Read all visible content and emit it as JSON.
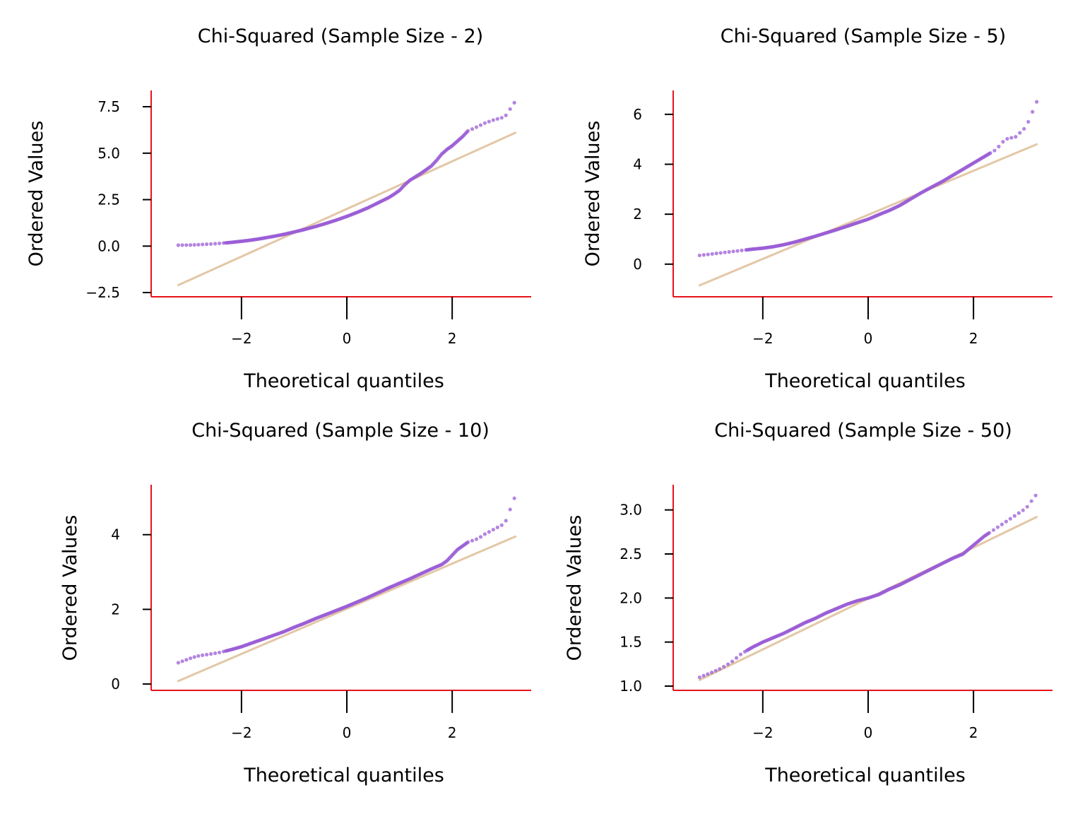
{
  "figure": {
    "background": "#ffffff",
    "spine_color": "#e8131b",
    "point_color": "#9a5cd6",
    "line_color": "#e3c7a6"
  },
  "chart_data": [
    {
      "type": "scatter",
      "title": "Chi-Squared (Sample Size - 2)",
      "xlabel": "Theoretical quantiles",
      "ylabel": "Ordered Values",
      "xlim": [
        -3.5,
        3.5
      ],
      "ylim": [
        -2.65,
        8.3
      ],
      "xticks": [
        -2,
        0,
        2
      ],
      "xtick_labels": [
        "−2",
        "0",
        "2"
      ],
      "yticks": [
        -2.5,
        0.0,
        2.5,
        5.0,
        7.5
      ],
      "ytick_labels": [
        "−2.5",
        "0.0",
        "2.5",
        "5.0",
        "7.5"
      ],
      "grid": false,
      "fit_line": {
        "x": [
          -3.2,
          3.2
        ],
        "y": [
          -2.1,
          6.1
        ]
      },
      "points": {
        "x": [
          -3.2,
          -2.95,
          -2.8,
          -2.6,
          -2.4,
          -2.2,
          -2.0,
          -1.8,
          -1.6,
          -1.4,
          -1.2,
          -1.0,
          -0.8,
          -0.6,
          -0.4,
          -0.2,
          0.0,
          0.2,
          0.4,
          0.6,
          0.8,
          0.9,
          1.0,
          1.1,
          1.2,
          1.4,
          1.6,
          1.7,
          1.8,
          1.9,
          2.0,
          2.1,
          2.2,
          2.3,
          2.5,
          2.6,
          2.8,
          3.0,
          3.2
        ],
        "y": [
          0.05,
          0.06,
          0.08,
          0.11,
          0.15,
          0.2,
          0.26,
          0.33,
          0.42,
          0.52,
          0.63,
          0.76,
          0.9,
          1.05,
          1.22,
          1.4,
          1.6,
          1.82,
          2.06,
          2.34,
          2.62,
          2.8,
          3.0,
          3.3,
          3.55,
          3.9,
          4.3,
          4.6,
          4.95,
          5.2,
          5.4,
          5.65,
          5.9,
          6.2,
          6.45,
          6.6,
          6.8,
          6.95,
          7.8
        ]
      }
    },
    {
      "type": "scatter",
      "title": "Chi-Squared (Sample Size - 5)",
      "xlabel": "Theoretical quantiles",
      "ylabel": "Ordered Values",
      "xlim": [
        -3.5,
        3.5
      ],
      "ylim": [
        -1.25,
        6.9
      ],
      "xticks": [
        -2,
        0,
        2
      ],
      "xtick_labels": [
        "−2",
        "0",
        "2"
      ],
      "yticks": [
        0,
        2,
        4,
        6
      ],
      "ytick_labels": [
        "0",
        "2",
        "4",
        "6"
      ],
      "grid": false,
      "fit_line": {
        "x": [
          -3.2,
          3.2
        ],
        "y": [
          -0.85,
          4.8
        ]
      },
      "points": {
        "x": [
          -3.2,
          -3.0,
          -2.8,
          -2.6,
          -2.4,
          -2.2,
          -2.0,
          -1.8,
          -1.6,
          -1.4,
          -1.2,
          -1.0,
          -0.8,
          -0.6,
          -0.4,
          -0.2,
          0.0,
          0.2,
          0.4,
          0.6,
          0.8,
          1.0,
          1.2,
          1.4,
          1.6,
          1.8,
          2.0,
          2.2,
          2.4,
          2.5,
          2.6,
          2.8,
          3.0,
          3.2
        ],
        "y": [
          0.35,
          0.4,
          0.45,
          0.5,
          0.55,
          0.6,
          0.64,
          0.7,
          0.78,
          0.88,
          1.0,
          1.12,
          1.25,
          1.38,
          1.52,
          1.66,
          1.8,
          1.98,
          2.15,
          2.35,
          2.6,
          2.85,
          3.08,
          3.3,
          3.55,
          3.8,
          4.05,
          4.3,
          4.55,
          4.75,
          5.0,
          5.1,
          5.5,
          6.5
        ]
      }
    },
    {
      "type": "scatter",
      "title": "Chi-Squared (Sample Size - 10)",
      "xlabel": "Theoretical quantiles",
      "ylabel": "Ordered Values",
      "xlim": [
        -3.5,
        3.5
      ],
      "ylim": [
        -0.15,
        5.3
      ],
      "xticks": [
        -2,
        0,
        2
      ],
      "xtick_labels": [
        "−2",
        "0",
        "2"
      ],
      "yticks": [
        0,
        2,
        4
      ],
      "ytick_labels": [
        "0",
        "2",
        "4"
      ],
      "grid": false,
      "fit_line": {
        "x": [
          -3.2,
          3.2
        ],
        "y": [
          0.08,
          3.95
        ]
      },
      "points": {
        "x": [
          -3.2,
          -2.95,
          -2.8,
          -2.6,
          -2.4,
          -2.2,
          -2.0,
          -1.8,
          -1.6,
          -1.4,
          -1.2,
          -1.0,
          -0.8,
          -0.6,
          -0.4,
          -0.2,
          0.0,
          0.2,
          0.4,
          0.6,
          0.8,
          1.0,
          1.2,
          1.4,
          1.6,
          1.8,
          1.9,
          2.0,
          2.1,
          2.2,
          2.3,
          2.5,
          2.6,
          2.8,
          3.0,
          3.2
        ],
        "y": [
          0.57,
          0.7,
          0.76,
          0.8,
          0.85,
          0.92,
          1.0,
          1.1,
          1.2,
          1.3,
          1.4,
          1.52,
          1.63,
          1.75,
          1.86,
          1.97,
          2.08,
          2.2,
          2.32,
          2.45,
          2.58,
          2.7,
          2.82,
          2.95,
          3.08,
          3.2,
          3.3,
          3.45,
          3.6,
          3.7,
          3.8,
          3.9,
          4.0,
          4.15,
          4.3,
          5.05
        ]
      }
    },
    {
      "type": "scatter",
      "title": "Chi-Squared (Sample Size - 50)",
      "xlabel": "Theoretical quantiles",
      "ylabel": "Ordered Values",
      "xlim": [
        -3.5,
        3.5
      ],
      "ylim": [
        0.96,
        3.27
      ],
      "xticks": [
        -2,
        0,
        2
      ],
      "xtick_labels": [
        "−2",
        "0",
        "2"
      ],
      "yticks": [
        1.0,
        1.5,
        2.0,
        2.5,
        3.0
      ],
      "ytick_labels": [
        "1.0",
        "1.5",
        "2.0",
        "2.5",
        "3.0"
      ],
      "grid": false,
      "fit_line": {
        "x": [
          -3.2,
          3.2
        ],
        "y": [
          1.07,
          2.92
        ]
      },
      "points": {
        "x": [
          -3.2,
          -2.95,
          -2.8,
          -2.6,
          -2.4,
          -2.2,
          -2.0,
          -1.8,
          -1.6,
          -1.4,
          -1.2,
          -1.0,
          -0.8,
          -0.6,
          -0.4,
          -0.2,
          0.0,
          0.2,
          0.4,
          0.6,
          0.8,
          1.0,
          1.2,
          1.4,
          1.6,
          1.8,
          2.0,
          2.2,
          2.4,
          2.6,
          2.8,
          3.0,
          3.2
        ],
        "y": [
          1.1,
          1.16,
          1.2,
          1.27,
          1.37,
          1.44,
          1.5,
          1.55,
          1.6,
          1.66,
          1.72,
          1.77,
          1.83,
          1.88,
          1.93,
          1.97,
          2.0,
          2.04,
          2.1,
          2.15,
          2.21,
          2.27,
          2.33,
          2.39,
          2.45,
          2.5,
          2.6,
          2.7,
          2.78,
          2.86,
          2.94,
          3.02,
          3.18
        ]
      }
    }
  ]
}
